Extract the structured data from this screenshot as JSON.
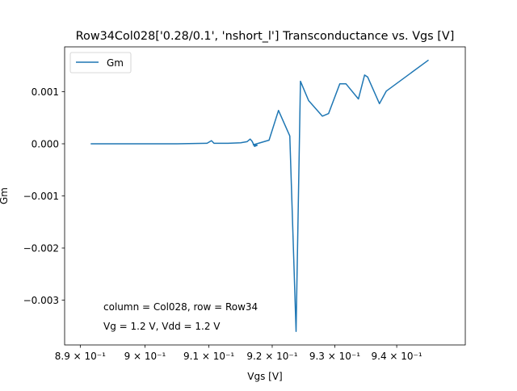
{
  "chart_data": {
    "type": "line",
    "title": "Row34Col028['0.28/0.1', 'nshort_l'] Transconductance vs. Vgs [V]",
    "xlabel": "Vgs [V]",
    "ylabel": "Gm",
    "xscale": "log",
    "xlim": [
      0.8876,
      0.9512
    ],
    "ylim": [
      -0.00386,
      0.00186
    ],
    "grid": false,
    "legend_position": "upper left",
    "line_color": "#1f77b4",
    "x_ticks": [
      {
        "value": 0.89,
        "label": "8.9 × 10⁻¹"
      },
      {
        "value": 0.9,
        "label": "9 × 10⁻¹"
      },
      {
        "value": 0.91,
        "label": "9.1 × 10⁻¹"
      },
      {
        "value": 0.92,
        "label": "9.2 × 10⁻¹"
      },
      {
        "value": 0.93,
        "label": "9.3 × 10⁻¹"
      },
      {
        "value": 0.94,
        "label": "9.4 × 10⁻¹"
      }
    ],
    "y_ticks": [
      {
        "value": 0.001,
        "label": "0.001"
      },
      {
        "value": 0.0,
        "label": "0.000"
      },
      {
        "value": -0.001,
        "label": "−0.001"
      },
      {
        "value": -0.002,
        "label": "−0.002"
      },
      {
        "value": -0.003,
        "label": "−0.003"
      }
    ],
    "series": [
      {
        "name": "Gm",
        "x": [
          0.8917,
          0.895,
          0.9,
          0.905,
          0.9097,
          0.9104,
          0.9108,
          0.913,
          0.915,
          0.916,
          0.9165,
          0.9168,
          0.9172,
          0.9176,
          0.917,
          0.9195,
          0.921,
          0.9228,
          0.9238,
          0.9245,
          0.9258,
          0.928,
          0.929,
          0.9308,
          0.9318,
          0.9338,
          0.9348,
          0.9353,
          0.9372,
          0.9383,
          0.9451
        ],
        "y": [
          0.0,
          0.0,
          0.0,
          0.0,
          1e-05,
          6e-05,
          1e-05,
          1e-05,
          2e-05,
          4e-05,
          9e-05,
          5e-05,
          -5e-05,
          -3e-05,
          -2e-05,
          7e-05,
          0.00064,
          0.00015,
          -0.0036,
          0.0012,
          0.00083,
          0.00053,
          0.00058,
          0.00115,
          0.00115,
          0.00086,
          0.00132,
          0.00128,
          0.00077,
          0.00101,
          0.0016
        ]
      }
    ],
    "annotations": [
      "column = Col028, row = Row34",
      "Vg = 1.2 V, Vdd = 1.2 V"
    ]
  }
}
